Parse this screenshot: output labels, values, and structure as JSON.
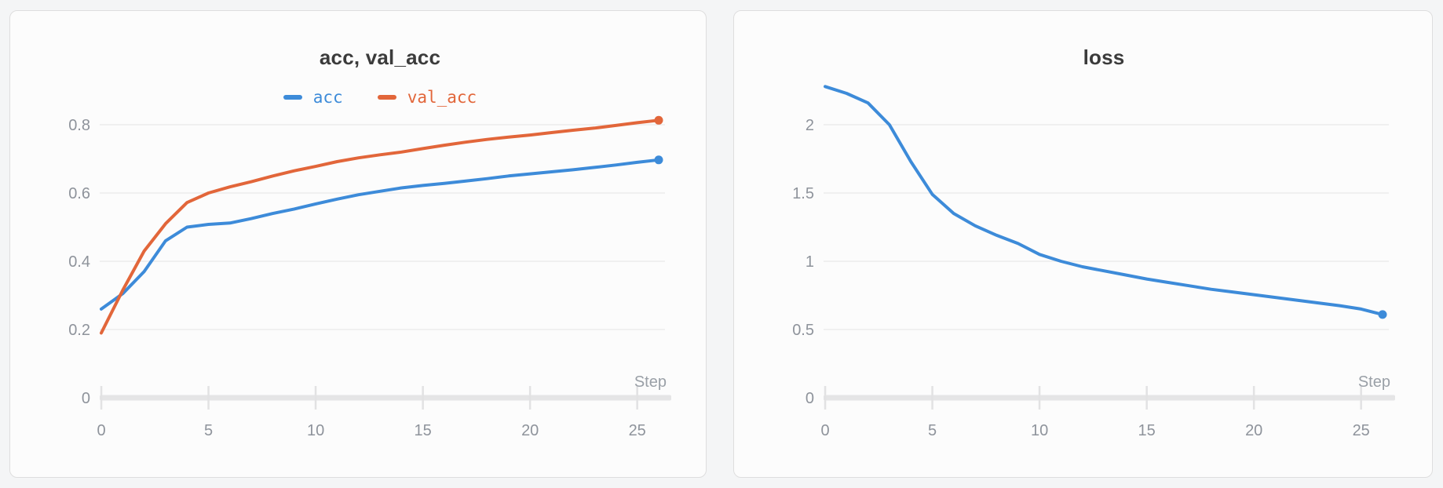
{
  "page": {
    "background_color": "#f4f5f6",
    "panel_background_color": "#fcfcfc",
    "panel_border_color": "#dedede"
  },
  "chart_data": [
    {
      "type": "line",
      "title": "acc, val_acc",
      "xlabel": "Step",
      "ylabel": "",
      "xlim": [
        0,
        26
      ],
      "ylim": [
        0,
        0.88
      ],
      "grid": true,
      "legend_position": "top-center",
      "x_ticks": [
        "0",
        "5",
        "10",
        "15",
        "20",
        "25"
      ],
      "y_ticks": [
        "0",
        "0.2",
        "0.4",
        "0.6",
        "0.8"
      ],
      "x": [
        0,
        1,
        2,
        3,
        4,
        5,
        6,
        7,
        8,
        9,
        10,
        11,
        12,
        13,
        14,
        15,
        16,
        17,
        18,
        19,
        20,
        21,
        22,
        23,
        24,
        25,
        26
      ],
      "series": [
        {
          "name": "acc",
          "color": "#3d8bd9",
          "values": [
            0.26,
            0.305,
            0.37,
            0.46,
            0.5,
            0.508,
            0.512,
            0.525,
            0.54,
            0.553,
            0.568,
            0.582,
            0.595,
            0.605,
            0.615,
            0.622,
            0.628,
            0.635,
            0.642,
            0.65,
            0.656,
            0.662,
            0.668,
            0.675,
            0.682,
            0.69,
            0.697
          ]
        },
        {
          "name": "val_acc",
          "color": "#e2663a",
          "values": [
            0.19,
            0.315,
            0.43,
            0.51,
            0.572,
            0.6,
            0.618,
            0.633,
            0.65,
            0.665,
            0.678,
            0.692,
            0.703,
            0.712,
            0.72,
            0.73,
            0.74,
            0.749,
            0.757,
            0.764,
            0.77,
            0.777,
            0.784,
            0.79,
            0.798,
            0.806,
            0.813
          ]
        }
      ]
    },
    {
      "type": "line",
      "title": "loss",
      "xlabel": "Step",
      "ylabel": "",
      "xlim": [
        0,
        26
      ],
      "ylim": [
        0,
        2.42
      ],
      "grid": true,
      "legend_position": "none",
      "x_ticks": [
        "0",
        "5",
        "10",
        "15",
        "20",
        "25"
      ],
      "y_ticks": [
        "0",
        "0.5",
        "1",
        "1.5",
        "2"
      ],
      "x": [
        0,
        1,
        2,
        3,
        4,
        5,
        6,
        7,
        8,
        9,
        10,
        11,
        12,
        13,
        14,
        15,
        16,
        17,
        18,
        19,
        20,
        21,
        22,
        23,
        24,
        25,
        26
      ],
      "series": [
        {
          "name": "loss",
          "color": "#3d8bd9",
          "values": [
            2.28,
            2.23,
            2.16,
            2.0,
            1.73,
            1.49,
            1.35,
            1.26,
            1.19,
            1.13,
            1.05,
            1.0,
            0.96,
            0.93,
            0.9,
            0.87,
            0.845,
            0.82,
            0.795,
            0.775,
            0.755,
            0.735,
            0.715,
            0.695,
            0.675,
            0.65,
            0.61
          ]
        }
      ]
    }
  ],
  "style": {
    "gridline_color": "#ebebec",
    "axis_strip_color": "#e5e5e6",
    "tick_mark_color": "#e2e2e3"
  }
}
